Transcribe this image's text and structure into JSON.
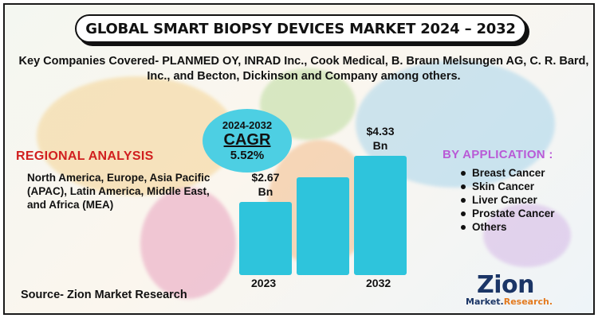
{
  "header": {
    "title": "GLOBAL SMART BIOPSY DEVICES MARKET 2024 – 2032",
    "companies": "Key Companies Covered- PLANMED OY, INRAD Inc., Cook Medical, B. Braun Melsungen AG, C. R. Bard, Inc., and Becton, Dickinson and Company among others."
  },
  "regional": {
    "title": "REGIONAL ANALYSIS",
    "text": "North America, Europe, Asia Pacific (APAC), Latin America, Middle East, and Africa (MEA)"
  },
  "cagr": {
    "years": "2024-2032",
    "label": "CAGR",
    "value": "5.52%"
  },
  "application": {
    "title": "BY APPLICATION :",
    "items": [
      "Breast Cancer",
      "Skin Cancer",
      "Liver Cancer",
      "Prostate Cancer",
      "Others"
    ]
  },
  "source": "Source- Zion Market Research",
  "logo": {
    "main": "Zion",
    "sub_a": "Market.",
    "sub_b": "Research."
  },
  "colors": {
    "bar": "#2ec4dc",
    "cagr_bubble": "#4dcfe3",
    "regional_title": "#d11f1f",
    "application_title": "#b95ad6",
    "logo_primary": "#1b3566",
    "logo_accent": "#e37a1f"
  },
  "chart_data": {
    "type": "bar",
    "categories": [
      "2023",
      "",
      "2032"
    ],
    "values": [
      2.67,
      3.55,
      4.33
    ],
    "value_labels": [
      "$2.67\nBn",
      "",
      "$4.33\nBn"
    ],
    "title": "",
    "xlabel": "",
    "ylabel": "",
    "ylim": [
      0,
      4.33
    ]
  }
}
